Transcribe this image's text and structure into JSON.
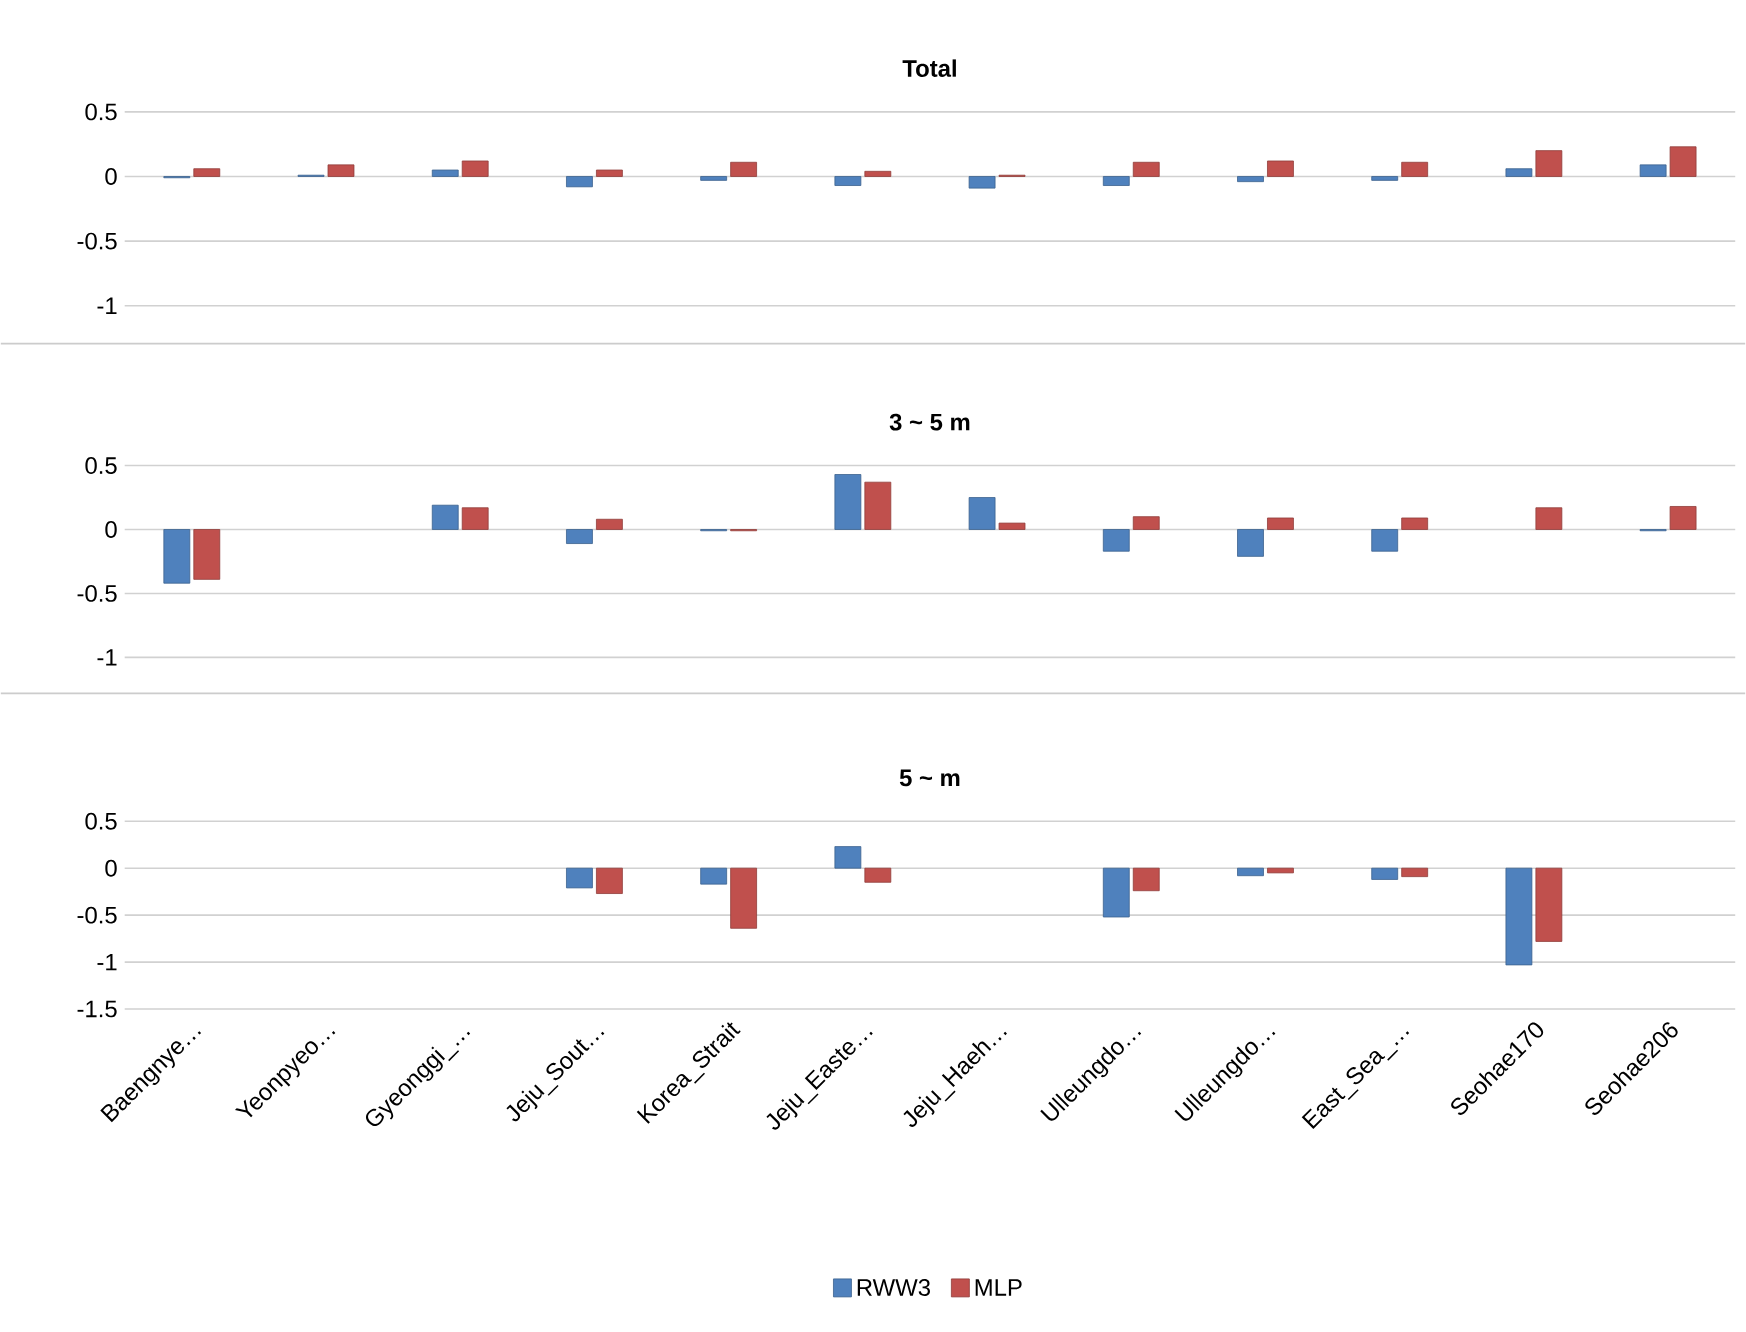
{
  "chart_data": [
    {
      "type": "bar",
      "title": "Total",
      "categories": [
        null,
        null,
        null,
        null,
        null,
        null,
        null,
        null,
        null,
        null,
        null,
        null
      ],
      "series": [
        {
          "color": "#4f81bd",
          "values": [
            -0.01,
            0.01,
            0.05,
            -0.08,
            -0.03,
            -0.07,
            -0.09,
            -0.07,
            -0.04,
            -0.03,
            0.06,
            0.09
          ]
        },
        {
          "color": "#c0504d",
          "values": [
            0.06,
            0.09,
            0.12,
            0.05,
            0.11,
            0.04,
            0.01,
            0.11,
            0.12,
            0.11,
            0.2,
            0.23
          ]
        }
      ],
      "ylim": [
        -1,
        0.5
      ],
      "yticks": [
        0.5,
        0,
        -0.5,
        -1
      ],
      "grid": "y",
      "tick_labels": "y"
    },
    {
      "type": "bar",
      "title": "3 ~ 5 m",
      "categories": [
        null,
        null,
        null,
        null,
        null,
        null,
        null,
        null,
        null,
        null,
        null,
        null
      ],
      "series": [
        {
          "color": "#4f81bd",
          "values": [
            -0.42,
            null,
            0.19,
            -0.11,
            -0.01,
            0.43,
            0.25,
            -0.17,
            -0.21,
            -0.17,
            null,
            -0.01
          ]
        },
        {
          "color": "#c0504d",
          "values": [
            -0.39,
            null,
            0.17,
            0.08,
            -0.01,
            0.37,
            0.05,
            0.1,
            0.09,
            0.09,
            0.17,
            0.18
          ]
        }
      ],
      "ylim": [
        -1,
        0.5
      ],
      "yticks": [
        0.5,
        0,
        -0.5,
        -1
      ],
      "grid": "y",
      "tick_labels": "y"
    },
    {
      "type": "bar",
      "title": "5 ~ m",
      "categories": [
        "Baengnye…",
        "Yeonpyeo…",
        "Gyeonggi_…",
        "Jeju_Sout…",
        "Korea_Strait",
        "Jeju_Easte…",
        "Jeju_Haeh…",
        "Ulleungdo…",
        "Ulleungdo…",
        "East_Sea_…",
        "Seohae170",
        "Seohae206"
      ],
      "series": [
        {
          "name": "RWW3",
          "color": "#4f81bd",
          "values": [
            null,
            null,
            null,
            -0.21,
            -0.17,
            0.23,
            null,
            -0.52,
            -0.08,
            -0.12,
            -1.03,
            null
          ]
        },
        {
          "name": "MLP",
          "color": "#c0504d",
          "values": [
            null,
            null,
            null,
            -0.27,
            -0.64,
            -0.15,
            null,
            -0.24,
            -0.05,
            -0.09,
            -0.78,
            null
          ]
        }
      ],
      "ylim": [
        -1.5,
        0.5
      ],
      "yticks": [
        0.5,
        0,
        -0.5,
        -1,
        -1.5
      ],
      "grid": "y",
      "legend": "bottom"
    }
  ]
}
